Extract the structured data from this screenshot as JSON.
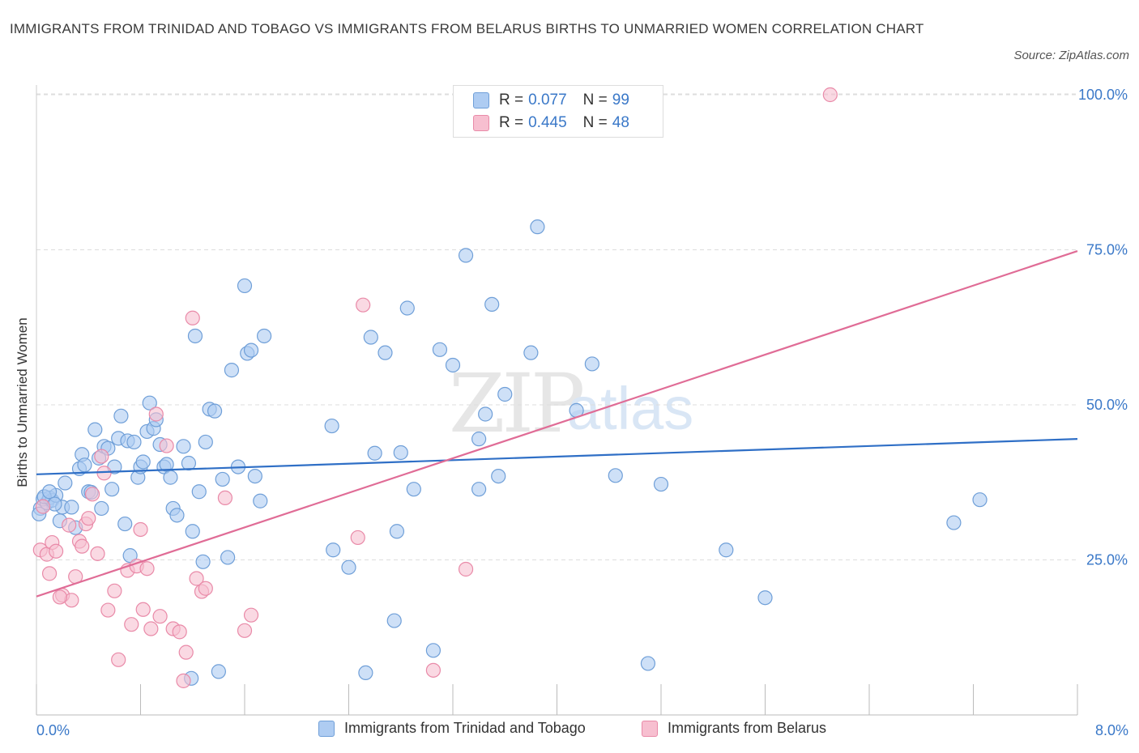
{
  "title": "IMMIGRANTS FROM TRINIDAD AND TOBAGO VS IMMIGRANTS FROM BELARUS BIRTHS TO UNMARRIED WOMEN CORRELATION CHART",
  "source": "Source: ZipAtlas.com",
  "watermark": {
    "zip": "ZIP",
    "atlas": "atlas"
  },
  "colors": {
    "series1_fill": "#aeccf2",
    "series1_stroke": "#6f9fd8",
    "series1_line": "#2f6fc6",
    "series2_fill": "#f7bfd0",
    "series2_stroke": "#e98aa8",
    "series2_line": "#e06c96",
    "axis_text": "#3a78c8",
    "grid": "#dddddd"
  },
  "legend": {
    "rows": [
      {
        "r_label": "R =",
        "r_value": "0.077",
        "n_label": "N =",
        "n_value": "99"
      },
      {
        "r_label": "R =",
        "r_value": "0.445",
        "n_label": "N =",
        "n_value": "48"
      }
    ]
  },
  "bottom_legend": [
    {
      "label": "Immigrants from Trinidad and Tobago"
    },
    {
      "label": "Immigrants from Belarus"
    }
  ],
  "chart_data": {
    "type": "scatter",
    "title": "IMMIGRANTS FROM TRINIDAD AND TOBAGO VS IMMIGRANTS FROM BELARUS BIRTHS TO UNMARRIED WOMEN CORRELATION CHART",
    "xlabel": "",
    "ylabel": "Births to Unmarried Women",
    "xlim": [
      0,
      8
    ],
    "ylim": [
      0,
      100
    ],
    "x_tick_labels": [
      "0.0%",
      "8.0%"
    ],
    "y_tick_labels": [
      "25.0%",
      "50.0%",
      "75.0%",
      "100.0%"
    ],
    "y_ticks": [
      25,
      50,
      75,
      100
    ],
    "grid": "horizontal dashed",
    "legend_position": "top-center",
    "series": [
      {
        "name": "Immigrants from Trinidad and Tobago",
        "R": 0.077,
        "N": 99,
        "trend": {
          "x0": 0,
          "y0": 38.8,
          "x1": 8,
          "y1": 44.5
        },
        "points": [
          [
            0.03,
            33.3
          ],
          [
            0.05,
            34.8
          ],
          [
            0.08,
            34.2
          ],
          [
            0.1,
            35.0
          ],
          [
            0.12,
            34.6
          ],
          [
            0.15,
            35.4
          ],
          [
            0.18,
            31.3
          ],
          [
            0.2,
            33.5
          ],
          [
            0.22,
            37.4
          ],
          [
            0.27,
            33.5
          ],
          [
            0.3,
            30.2
          ],
          [
            0.33,
            39.7
          ],
          [
            0.35,
            42.0
          ],
          [
            0.37,
            40.3
          ],
          [
            0.4,
            36.0
          ],
          [
            0.42,
            35.9
          ],
          [
            0.45,
            46.0
          ],
          [
            0.48,
            41.4
          ],
          [
            0.5,
            33.3
          ],
          [
            0.52,
            43.3
          ],
          [
            0.55,
            43.0
          ],
          [
            0.58,
            36.4
          ],
          [
            0.6,
            40.0
          ],
          [
            0.63,
            44.6
          ],
          [
            0.65,
            48.2
          ],
          [
            0.68,
            30.8
          ],
          [
            0.7,
            44.2
          ],
          [
            0.72,
            25.7
          ],
          [
            0.75,
            44.0
          ],
          [
            0.78,
            38.3
          ],
          [
            0.8,
            40.0
          ],
          [
            0.82,
            40.8
          ],
          [
            0.85,
            45.7
          ],
          [
            0.87,
            50.3
          ],
          [
            0.9,
            46.2
          ],
          [
            0.92,
            47.6
          ],
          [
            0.95,
            43.6
          ],
          [
            0.98,
            40.0
          ],
          [
            1.0,
            40.4
          ],
          [
            1.03,
            38.3
          ],
          [
            1.05,
            33.3
          ],
          [
            1.08,
            32.2
          ],
          [
            1.13,
            43.3
          ],
          [
            1.17,
            40.6
          ],
          [
            1.2,
            29.6
          ],
          [
            1.22,
            61.1
          ],
          [
            1.25,
            36.0
          ],
          [
            1.28,
            24.7
          ],
          [
            1.3,
            44.0
          ],
          [
            1.33,
            49.3
          ],
          [
            1.37,
            49.0
          ],
          [
            1.4,
            7.0
          ],
          [
            1.43,
            38.0
          ],
          [
            1.47,
            25.4
          ],
          [
            1.5,
            55.6
          ],
          [
            1.55,
            40.0
          ],
          [
            1.6,
            69.2
          ],
          [
            1.62,
            58.3
          ],
          [
            1.65,
            58.8
          ],
          [
            1.68,
            38.5
          ],
          [
            1.72,
            34.5
          ],
          [
            1.75,
            61.1
          ],
          [
            1.19,
            5.9
          ],
          [
            2.27,
            46.6
          ],
          [
            2.28,
            26.6
          ],
          [
            2.4,
            23.8
          ],
          [
            2.53,
            6.8
          ],
          [
            2.57,
            60.9
          ],
          [
            2.6,
            42.2
          ],
          [
            2.68,
            58.4
          ],
          [
            2.75,
            15.2
          ],
          [
            2.77,
            29.6
          ],
          [
            2.8,
            42.3
          ],
          [
            2.85,
            65.6
          ],
          [
            2.9,
            36.4
          ],
          [
            3.05,
            10.4
          ],
          [
            3.1,
            58.9
          ],
          [
            3.2,
            56.4
          ],
          [
            3.3,
            74.1
          ],
          [
            3.4,
            44.5
          ],
          [
            3.4,
            36.4
          ],
          [
            3.45,
            48.5
          ],
          [
            3.5,
            66.2
          ],
          [
            3.55,
            38.5
          ],
          [
            3.6,
            51.7
          ],
          [
            3.8,
            58.4
          ],
          [
            3.85,
            78.7
          ],
          [
            4.15,
            49.1
          ],
          [
            4.27,
            56.6
          ],
          [
            4.45,
            38.6
          ],
          [
            4.7,
            8.3
          ],
          [
            4.8,
            37.2
          ],
          [
            5.3,
            26.6
          ],
          [
            5.6,
            18.9
          ],
          [
            7.05,
            31.0
          ],
          [
            7.25,
            34.7
          ],
          [
            0.02,
            32.4
          ],
          [
            0.06,
            35.2
          ],
          [
            0.1,
            36.0
          ],
          [
            0.14,
            34.0
          ]
        ]
      },
      {
        "name": "Immigrants from Belarus",
        "R": 0.445,
        "N": 48,
        "trend": {
          "x0": 0,
          "y0": 19.1,
          "x1": 8,
          "y1": 74.8
        },
        "points": [
          [
            0.03,
            26.6
          ],
          [
            0.05,
            33.6
          ],
          [
            0.08,
            25.9
          ],
          [
            0.1,
            22.8
          ],
          [
            0.12,
            27.8
          ],
          [
            0.15,
            26.4
          ],
          [
            0.2,
            19.3
          ],
          [
            0.25,
            30.6
          ],
          [
            0.27,
            18.5
          ],
          [
            0.3,
            22.3
          ],
          [
            0.33,
            28.0
          ],
          [
            0.35,
            27.2
          ],
          [
            0.38,
            30.8
          ],
          [
            0.4,
            31.7
          ],
          [
            0.43,
            35.6
          ],
          [
            0.47,
            26.0
          ],
          [
            0.5,
            41.7
          ],
          [
            0.52,
            39.0
          ],
          [
            0.55,
            16.9
          ],
          [
            0.6,
            20.0
          ],
          [
            0.63,
            8.9
          ],
          [
            0.7,
            23.3
          ],
          [
            0.73,
            14.6
          ],
          [
            0.77,
            24.0
          ],
          [
            0.8,
            29.9
          ],
          [
            0.82,
            17.0
          ],
          [
            0.85,
            23.6
          ],
          [
            0.88,
            13.9
          ],
          [
            0.92,
            48.5
          ],
          [
            0.95,
            15.9
          ],
          [
            1.0,
            43.4
          ],
          [
            1.05,
            13.9
          ],
          [
            1.1,
            13.4
          ],
          [
            1.13,
            5.5
          ],
          [
            1.15,
            10.1
          ],
          [
            1.2,
            64.0
          ],
          [
            1.23,
            22.0
          ],
          [
            1.27,
            19.9
          ],
          [
            1.3,
            20.4
          ],
          [
            1.45,
            35.0
          ],
          [
            1.6,
            13.6
          ],
          [
            1.65,
            16.1
          ],
          [
            2.47,
            28.6
          ],
          [
            2.51,
            66.1
          ],
          [
            3.05,
            7.2
          ],
          [
            3.3,
            23.5
          ],
          [
            6.1,
            100.0
          ],
          [
            0.18,
            19.0
          ]
        ]
      }
    ]
  }
}
